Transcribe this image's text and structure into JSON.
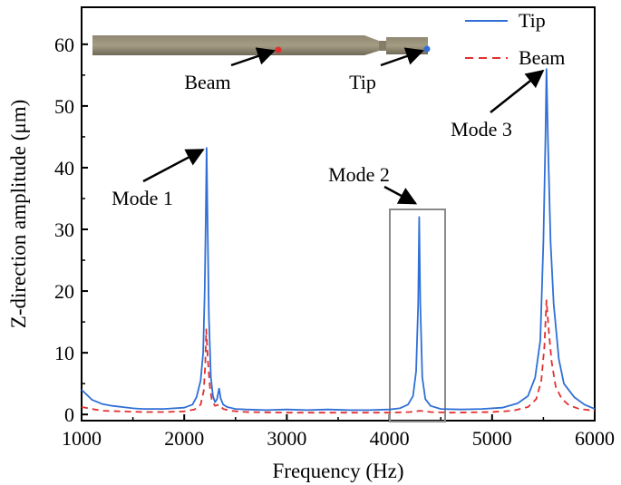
{
  "chart_data": {
    "type": "line",
    "xlabel": "Frequency (Hz)",
    "ylabel": "Z-direction amplitude (μm)",
    "xlim": [
      1000,
      6000
    ],
    "ylim": [
      -1,
      66
    ],
    "x_ticks": [
      1000,
      2000,
      3000,
      4000,
      5000,
      6000
    ],
    "y_ticks": [
      0,
      10,
      20,
      30,
      40,
      50,
      60
    ],
    "grid": false,
    "legend": {
      "placement": "top-right"
    },
    "series": [
      {
        "name": "Tip",
        "color": "#2f6fd6",
        "style": "solid",
        "points": [
          [
            1000,
            4.0
          ],
          [
            1050,
            3.2
          ],
          [
            1100,
            2.4
          ],
          [
            1200,
            1.7
          ],
          [
            1300,
            1.4
          ],
          [
            1400,
            1.2
          ],
          [
            1500,
            1.0
          ],
          [
            1600,
            0.9
          ],
          [
            1700,
            0.9
          ],
          [
            1800,
            0.9
          ],
          [
            1900,
            1.0
          ],
          [
            2000,
            1.1
          ],
          [
            2080,
            1.6
          ],
          [
            2120,
            2.8
          ],
          [
            2160,
            5.5
          ],
          [
            2185,
            10.0
          ],
          [
            2200,
            20.0
          ],
          [
            2210,
            32.0
          ],
          [
            2218,
            43.2
          ],
          [
            2226,
            33.0
          ],
          [
            2240,
            16.0
          ],
          [
            2260,
            6.0
          ],
          [
            2280,
            3.0
          ],
          [
            2300,
            2.0
          ],
          [
            2320,
            2.5
          ],
          [
            2340,
            4.2
          ],
          [
            2355,
            2.6
          ],
          [
            2380,
            1.6
          ],
          [
            2420,
            1.2
          ],
          [
            2500,
            0.9
          ],
          [
            2600,
            0.8
          ],
          [
            2800,
            0.7
          ],
          [
            3000,
            0.8
          ],
          [
            3200,
            0.7
          ],
          [
            3400,
            0.8
          ],
          [
            3600,
            0.7
          ],
          [
            3800,
            0.7
          ],
          [
            4000,
            0.8
          ],
          [
            4100,
            1.0
          ],
          [
            4180,
            1.6
          ],
          [
            4230,
            3.0
          ],
          [
            4260,
            7.0
          ],
          [
            4280,
            18.0
          ],
          [
            4290,
            32.0
          ],
          [
            4300,
            18.0
          ],
          [
            4320,
            6.0
          ],
          [
            4350,
            2.5
          ],
          [
            4400,
            1.4
          ],
          [
            4500,
            0.9
          ],
          [
            4700,
            0.8
          ],
          [
            4900,
            0.9
          ],
          [
            5100,
            1.1
          ],
          [
            5250,
            1.8
          ],
          [
            5350,
            3.0
          ],
          [
            5420,
            6.0
          ],
          [
            5470,
            12.0
          ],
          [
            5500,
            28.0
          ],
          [
            5520,
            45.0
          ],
          [
            5530,
            56.0
          ],
          [
            5545,
            44.0
          ],
          [
            5570,
            28.0
          ],
          [
            5600,
            18.0
          ],
          [
            5650,
            9.0
          ],
          [
            5700,
            5.0
          ],
          [
            5800,
            2.8
          ],
          [
            5900,
            1.6
          ],
          [
            6000,
            0.9
          ]
        ]
      },
      {
        "name": "Beam",
        "color": "#e03030",
        "style": "dashed",
        "points": [
          [
            1000,
            1.2
          ],
          [
            1100,
            0.9
          ],
          [
            1200,
            0.6
          ],
          [
            1400,
            0.5
          ],
          [
            1600,
            0.4
          ],
          [
            1800,
            0.4
          ],
          [
            2000,
            0.5
          ],
          [
            2100,
            0.8
          ],
          [
            2160,
            1.6
          ],
          [
            2190,
            3.8
          ],
          [
            2205,
            8.0
          ],
          [
            2215,
            13.8
          ],
          [
            2230,
            9.0
          ],
          [
            2250,
            4.5
          ],
          [
            2270,
            2.2
          ],
          [
            2300,
            1.4
          ],
          [
            2340,
            1.6
          ],
          [
            2380,
            0.9
          ],
          [
            2450,
            0.6
          ],
          [
            2600,
            0.4
          ],
          [
            3000,
            0.3
          ],
          [
            3500,
            0.3
          ],
          [
            4000,
            0.3
          ],
          [
            4200,
            0.4
          ],
          [
            4300,
            0.6
          ],
          [
            4400,
            0.4
          ],
          [
            4600,
            0.3
          ],
          [
            5000,
            0.4
          ],
          [
            5200,
            0.6
          ],
          [
            5350,
            1.2
          ],
          [
            5430,
            2.5
          ],
          [
            5480,
            5.5
          ],
          [
            5510,
            11.0
          ],
          [
            5530,
            18.5
          ],
          [
            5550,
            14.0
          ],
          [
            5580,
            8.5
          ],
          [
            5620,
            4.5
          ],
          [
            5680,
            2.5
          ],
          [
            5750,
            1.5
          ],
          [
            5850,
            0.9
          ],
          [
            6000,
            0.6
          ]
        ]
      }
    ],
    "annotations": [
      {
        "text": "Mode 1",
        "arrow_to": [
          2218,
          43.2
        ]
      },
      {
        "text": "Mode 2",
        "arrow_to": [
          4290,
          34.5
        ]
      },
      {
        "text": "Mode 3",
        "arrow_to": [
          5530,
          56.0
        ]
      }
    ],
    "inset": {
      "labels": [
        "Beam",
        "Tip"
      ],
      "beam_marker_color": "#e03030",
      "tip_marker_color": "#2f6fd6"
    }
  }
}
